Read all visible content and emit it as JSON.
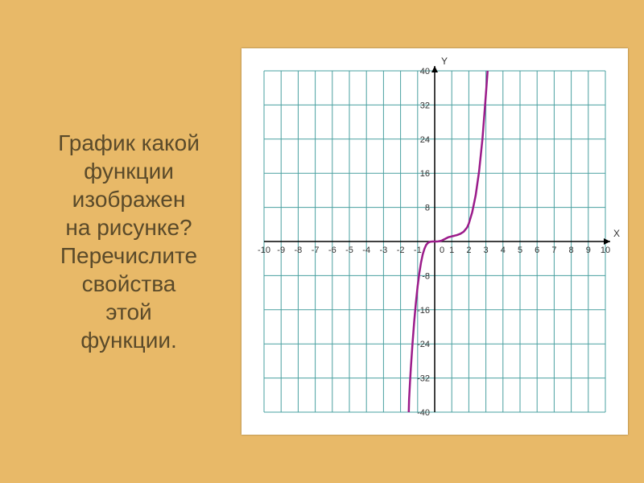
{
  "text": {
    "line1": "График какой",
    "line2": "функции",
    "line3": "изображен",
    "line4": "на рисунке?",
    "line5": "Перечислите",
    "line6": "свойства",
    "line7": "этой",
    "line8": "функции."
  },
  "chart": {
    "type": "line",
    "background_color": "#ffffff",
    "grid_color": "#4aa0a0",
    "axis_color": "#000000",
    "tick_label_color": "#333333",
    "curve_color": "#9b1b8a",
    "xlim": [
      -10,
      10
    ],
    "ylim": [
      -40,
      40
    ],
    "xtick_step": 1,
    "ytick_step": 8,
    "x_tick_labels": [
      -10,
      -9,
      -8,
      -7,
      -6,
      -5,
      -4,
      -3,
      -2,
      -1,
      0,
      1,
      2,
      3,
      4,
      5,
      6,
      7,
      8,
      9,
      10
    ],
    "y_tick_labels": [
      -40,
      -32,
      -24,
      -16,
      -8,
      8,
      16,
      24,
      32,
      40
    ],
    "x_axis_title": "X",
    "y_axis_title": "Y",
    "origin_label": "0",
    "curve_points": [
      [
        -1.52,
        -40
      ],
      [
        -1.5,
        -37
      ],
      [
        -1.45,
        -33.2
      ],
      [
        -1.4,
        -29.8
      ],
      [
        -1.3,
        -23.9
      ],
      [
        -1.2,
        -18.7
      ],
      [
        -1.1,
        -14.3
      ],
      [
        -1.0,
        -10.5
      ],
      [
        -0.9,
        -7.4
      ],
      [
        -0.8,
        -4.9
      ],
      [
        -0.7,
        -3.0
      ],
      [
        -0.6,
        -1.7
      ],
      [
        -0.5,
        -0.8
      ],
      [
        -0.4,
        -0.35
      ],
      [
        -0.3,
        -0.1
      ],
      [
        -0.2,
        -0.03
      ],
      [
        -0.1,
        -0.005
      ],
      [
        0,
        0
      ],
      [
        0.1,
        0.005
      ],
      [
        0.2,
        0.03
      ],
      [
        0.3,
        0.1
      ],
      [
        0.4,
        0.2
      ],
      [
        0.5,
        0.4
      ],
      [
        0.6,
        0.6
      ],
      [
        0.7,
        0.8
      ],
      [
        0.8,
        1.0
      ],
      [
        0.9,
        1.1
      ],
      [
        1.0,
        1.2
      ],
      [
        1.1,
        1.3
      ],
      [
        1.2,
        1.4
      ],
      [
        1.3,
        1.5
      ],
      [
        1.5,
        1.8
      ],
      [
        1.7,
        2.3
      ],
      [
        1.9,
        3.3
      ],
      [
        2.0,
        4.2
      ],
      [
        2.2,
        6.9
      ],
      [
        2.4,
        10.8
      ],
      [
        2.6,
        16.4
      ],
      [
        2.8,
        24.1
      ],
      [
        3.0,
        34.5
      ],
      [
        3.1,
        40
      ]
    ],
    "label_fontsize": 11,
    "axis_title_fontsize": 12,
    "curve_width": 2.5
  }
}
